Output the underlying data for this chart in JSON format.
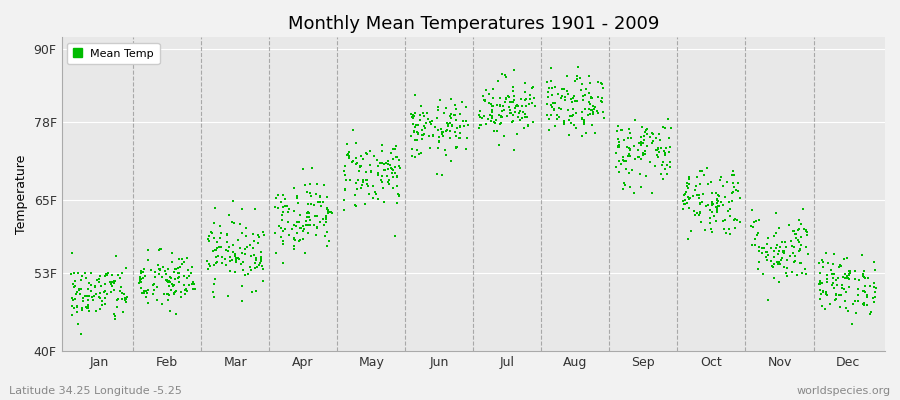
{
  "title": "Monthly Mean Temperatures 1901 - 2009",
  "ylabel": "Temperature",
  "subtitle_left": "Latitude 34.25 Longitude -5.25",
  "subtitle_right": "worldspecies.org",
  "yticks": [
    40,
    53,
    65,
    78,
    90
  ],
  "ytick_labels": [
    "40F",
    "53F",
    "65F",
    "78F",
    "90F"
  ],
  "ylim": [
    40,
    92
  ],
  "months": [
    "Jan",
    "Feb",
    "Mar",
    "Apr",
    "May",
    "Jun",
    "Jul",
    "Aug",
    "Sep",
    "Oct",
    "Nov",
    "Dec"
  ],
  "dot_color": "#00bb00",
  "dot_size": 3,
  "bg_color": "#f2f2f2",
  "plot_bg_color": "#e8e8e8",
  "legend_label": "Mean Temp",
  "month_mean_temps_F": [
    49.5,
    51.5,
    56.5,
    62.5,
    69.5,
    76.5,
    80.5,
    80.5,
    73.0,
    65.0,
    57.0,
    51.0
  ],
  "month_spread_F": [
    2.5,
    2.5,
    3.0,
    3.0,
    3.0,
    2.5,
    2.5,
    2.5,
    3.0,
    3.0,
    3.0,
    2.5
  ],
  "n_years": 109,
  "random_seed": 42,
  "xlim_left": -0.05,
  "xlim_right": 12.05
}
